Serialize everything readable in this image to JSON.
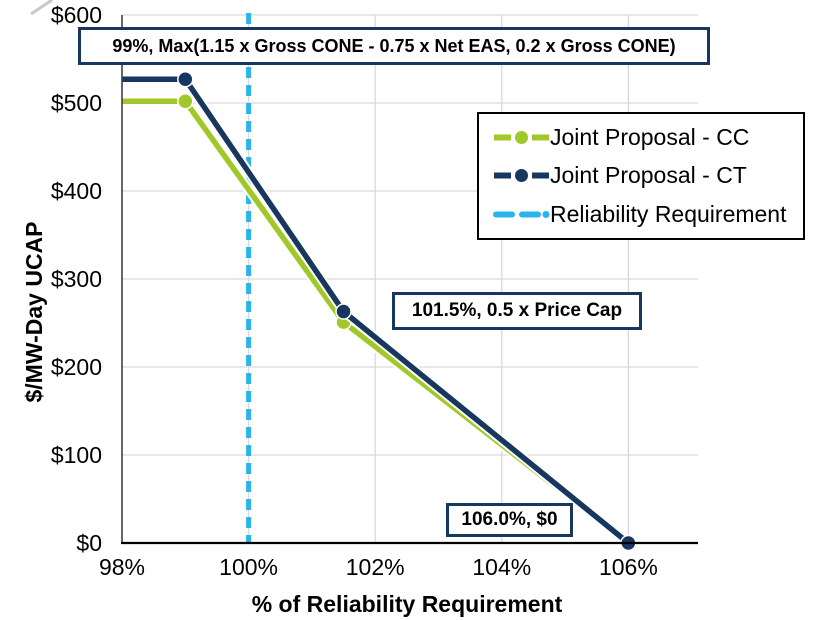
{
  "colors": {
    "cc_green": "#A0C828",
    "ct_navy": "#17375E",
    "reliability_cyan": "#29B5EB",
    "grid": "#D9D9D9",
    "x_axis": "#000000",
    "y_axis": "#404040",
    "annotation_border": "#17375E",
    "legend_border": "#000000",
    "artifact_gray": "#C8C8C8"
  },
  "chart_data": {
    "type": "line",
    "title": "",
    "xlabel": "% of Reliability Requirement",
    "ylabel": "$/MW-Day UCAP",
    "xlim": [
      98,
      107.1
    ],
    "ylim": [
      0,
      600
    ],
    "grid": true,
    "legend_position": "upper right",
    "x_ticks": [
      {
        "value": 98,
        "label": "98%"
      },
      {
        "value": 100,
        "label": "100%"
      },
      {
        "value": 102,
        "label": "102%"
      },
      {
        "value": 104,
        "label": "104%"
      },
      {
        "value": 106,
        "label": "106%"
      }
    ],
    "y_ticks": [
      {
        "value": 0,
        "label": "$0"
      },
      {
        "value": 100,
        "label": "$100"
      },
      {
        "value": 200,
        "label": "$200"
      },
      {
        "value": 300,
        "label": "$300"
      },
      {
        "value": 400,
        "label": "$400"
      },
      {
        "value": 500,
        "label": "$500"
      },
      {
        "value": 600,
        "label": "$600"
      }
    ],
    "series": [
      {
        "name": "Joint Proposal - CC",
        "color": "#A0C828",
        "x": [
          98,
          99,
          101.5,
          106
        ],
        "y": [
          502,
          502,
          251,
          0
        ],
        "markers": [
          {
            "x": 99,
            "y": 502
          },
          {
            "x": 101.5,
            "y": 251
          },
          {
            "x": 106,
            "y": 0
          }
        ]
      },
      {
        "name": "Joint Proposal - CT",
        "color": "#17375E",
        "x": [
          98,
          99,
          101.5,
          106
        ],
        "y": [
          527,
          527,
          263,
          0
        ],
        "markers": [
          {
            "x": 99,
            "y": 527
          },
          {
            "x": 101.5,
            "y": 263
          },
          {
            "x": 106,
            "y": 0
          }
        ]
      }
    ],
    "reference_line": {
      "name": "Reliability Requirement",
      "x": 100,
      "color": "#29B5EB",
      "style": "dashed"
    },
    "annotations": [
      {
        "text": "99%, Max(1.15 x Gross CONE - 0.75 x Net EAS, 0.2 x Gross CONE)"
      },
      {
        "text": "101.5%, 0.5 x Price Cap"
      },
      {
        "text": "106.0%, $0"
      }
    ]
  }
}
